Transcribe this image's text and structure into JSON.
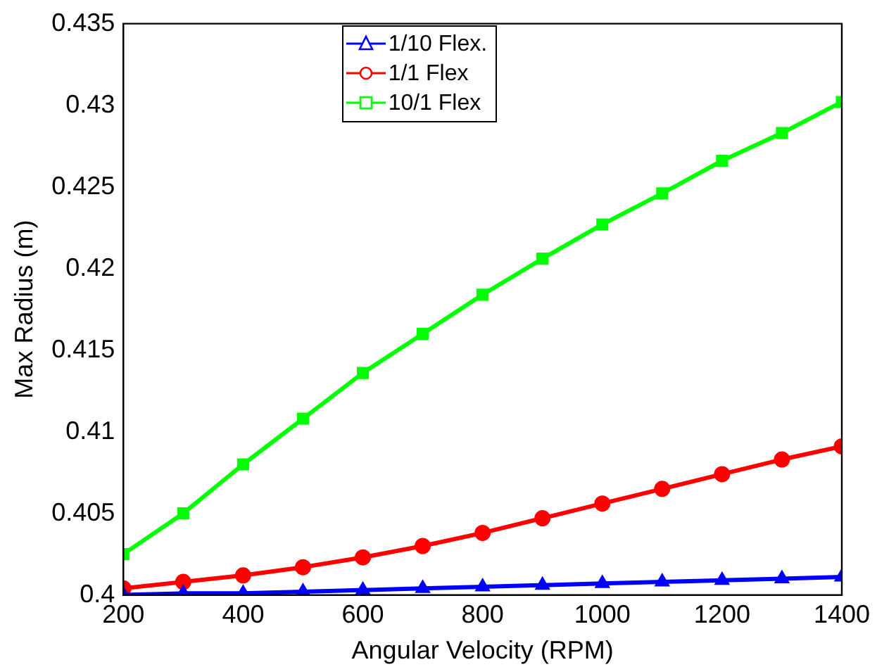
{
  "chart_data": {
    "type": "line",
    "xlabel": "Angular Velocity (RPM)",
    "ylabel": "Max Radius (m)",
    "x": [
      200,
      300,
      400,
      500,
      600,
      700,
      800,
      900,
      1000,
      1100,
      1200,
      1300,
      1400
    ],
    "series": [
      {
        "name": "1/10 Flex.",
        "color": "#0000ff",
        "marker": "triangle",
        "values": [
          0.4,
          0.4001,
          0.4001,
          0.4002,
          0.4003,
          0.4004,
          0.4005,
          0.4006,
          0.4007,
          0.4008,
          0.4009,
          0.401,
          0.4011
        ]
      },
      {
        "name": "1/1 Flex",
        "color": "#ff0000",
        "marker": "circle",
        "values": [
          0.4004,
          0.4008,
          0.4012,
          0.4017,
          0.4023,
          0.403,
          0.4038,
          0.4047,
          0.4056,
          0.4065,
          0.4074,
          0.4083,
          0.4091
        ]
      },
      {
        "name": "10/1 Flex",
        "color": "#00ff00",
        "marker": "square",
        "values": [
          0.4025,
          0.405,
          0.408,
          0.4108,
          0.4136,
          0.416,
          0.4184,
          0.4206,
          0.4227,
          0.4246,
          0.4266,
          0.4283,
          0.4302
        ]
      }
    ],
    "xlim": [
      200,
      1400
    ],
    "xticks": [
      200,
      400,
      600,
      800,
      1000,
      1200,
      1400
    ],
    "ylim": [
      0.4,
      0.435
    ],
    "yticks": [
      0.4,
      0.405,
      0.41,
      0.415,
      0.42,
      0.425,
      0.43,
      0.435
    ],
    "grid": false,
    "legend": "top",
    "line_style": "solid"
  }
}
